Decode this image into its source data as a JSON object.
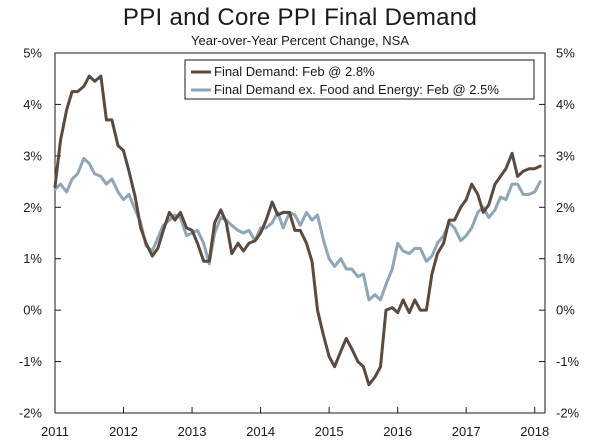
{
  "chart_data": {
    "type": "line",
    "title": "PPI and Core PPI Final Demand",
    "subtitle": "Year-over-Year Percent Change, NSA",
    "xlabel": "",
    "ylabel": "",
    "xlim": [
      2011,
      2018.15
    ],
    "ylim": [
      -2,
      5
    ],
    "y_ticks": [
      "5%",
      "4%",
      "3%",
      "2%",
      "1%",
      "0%",
      "-1%",
      "-2%"
    ],
    "y_tick_values": [
      5,
      4,
      3,
      2,
      1,
      0,
      -1,
      -2
    ],
    "x_ticks": [
      "2011",
      "2012",
      "2013",
      "2014",
      "2015",
      "2016",
      "2017",
      "2018"
    ],
    "x_tick_values": [
      2011,
      2012,
      2013,
      2014,
      2015,
      2016,
      2017,
      2018
    ],
    "legend_position": "top-right",
    "colors": {
      "final_demand": "#5b4a3f",
      "core": "#8ea6b5"
    },
    "series": [
      {
        "name": "Final Demand: Feb @ 2.8%",
        "color": "#5b4a3f",
        "x": [
          2011.0,
          2011.08,
          2011.17,
          2011.25,
          2011.33,
          2011.42,
          2011.5,
          2011.58,
          2011.67,
          2011.75,
          2011.83,
          2011.92,
          2012.0,
          2012.08,
          2012.17,
          2012.25,
          2012.33,
          2012.42,
          2012.5,
          2012.58,
          2012.67,
          2012.75,
          2012.83,
          2012.92,
          2013.0,
          2013.08,
          2013.17,
          2013.25,
          2013.33,
          2013.42,
          2013.5,
          2013.58,
          2013.67,
          2013.75,
          2013.83,
          2013.92,
          2014.0,
          2014.08,
          2014.17,
          2014.25,
          2014.33,
          2014.42,
          2014.5,
          2014.58,
          2014.67,
          2014.75,
          2014.83,
          2014.92,
          2015.0,
          2015.08,
          2015.17,
          2015.25,
          2015.33,
          2015.42,
          2015.5,
          2015.58,
          2015.67,
          2015.75,
          2015.83,
          2015.92,
          2016.0,
          2016.08,
          2016.17,
          2016.25,
          2016.33,
          2016.42,
          2016.5,
          2016.58,
          2016.67,
          2016.75,
          2016.83,
          2016.92,
          2017.0,
          2017.08,
          2017.17,
          2017.25,
          2017.33,
          2017.42,
          2017.5,
          2017.58,
          2017.67,
          2017.75,
          2017.83,
          2017.92,
          2018.0,
          2018.08
        ],
        "values": [
          2.4,
          3.3,
          3.9,
          4.25,
          4.25,
          4.35,
          4.55,
          4.45,
          4.55,
          3.7,
          3.7,
          3.2,
          3.1,
          2.7,
          2.2,
          1.6,
          1.3,
          1.05,
          1.2,
          1.55,
          1.9,
          1.75,
          1.9,
          1.6,
          1.55,
          1.3,
          0.95,
          0.95,
          1.7,
          1.95,
          1.7,
          1.1,
          1.3,
          1.15,
          1.3,
          1.35,
          1.5,
          1.75,
          2.1,
          1.85,
          1.9,
          1.9,
          1.55,
          1.55,
          1.3,
          0.95,
          0.0,
          -0.5,
          -0.9,
          -1.1,
          -0.8,
          -0.55,
          -0.75,
          -1.0,
          -1.1,
          -1.45,
          -1.3,
          -1.1,
          0.0,
          0.05,
          -0.05,
          0.2,
          -0.05,
          0.2,
          0.0,
          0.0,
          0.7,
          1.1,
          1.3,
          1.75,
          1.75,
          2.0,
          2.15,
          2.45,
          2.25,
          1.9,
          2.05,
          2.45,
          2.6,
          2.75,
          3.05,
          2.6,
          2.7,
          2.75,
          2.75,
          2.8
        ]
      },
      {
        "name": "Final Demand ex. Food and Energy: Feb @ 2.5%",
        "color": "#8ea6b5",
        "x": [
          2011.0,
          2011.08,
          2011.17,
          2011.25,
          2011.33,
          2011.42,
          2011.5,
          2011.58,
          2011.67,
          2011.75,
          2011.83,
          2011.92,
          2012.0,
          2012.08,
          2012.17,
          2012.25,
          2012.33,
          2012.42,
          2012.5,
          2012.58,
          2012.67,
          2012.75,
          2012.83,
          2012.92,
          2013.0,
          2013.08,
          2013.17,
          2013.25,
          2013.33,
          2013.42,
          2013.5,
          2013.58,
          2013.67,
          2013.75,
          2013.83,
          2013.92,
          2014.0,
          2014.08,
          2014.17,
          2014.25,
          2014.33,
          2014.42,
          2014.5,
          2014.58,
          2014.67,
          2014.75,
          2014.83,
          2014.92,
          2015.0,
          2015.08,
          2015.17,
          2015.25,
          2015.33,
          2015.42,
          2015.5,
          2015.58,
          2015.67,
          2015.75,
          2015.83,
          2015.92,
          2016.0,
          2016.08,
          2016.17,
          2016.25,
          2016.33,
          2016.42,
          2016.5,
          2016.58,
          2016.67,
          2016.75,
          2016.83,
          2016.92,
          2017.0,
          2017.08,
          2017.17,
          2017.25,
          2017.33,
          2017.42,
          2017.5,
          2017.58,
          2017.67,
          2017.75,
          2017.83,
          2017.92,
          2018.0,
          2018.08
        ],
        "values": [
          2.35,
          2.45,
          2.3,
          2.55,
          2.65,
          2.95,
          2.85,
          2.65,
          2.6,
          2.45,
          2.55,
          2.3,
          2.15,
          2.25,
          1.95,
          1.7,
          1.25,
          1.15,
          1.4,
          1.65,
          1.75,
          1.85,
          1.8,
          1.45,
          1.5,
          1.55,
          1.3,
          0.9,
          1.5,
          1.8,
          1.75,
          1.65,
          1.55,
          1.5,
          1.55,
          1.35,
          1.6,
          1.6,
          1.7,
          1.9,
          1.6,
          1.9,
          1.85,
          1.65,
          1.9,
          1.75,
          1.85,
          1.35,
          1.0,
          0.85,
          1.0,
          0.8,
          0.8,
          0.65,
          0.7,
          0.2,
          0.3,
          0.2,
          0.5,
          0.8,
          1.3,
          1.15,
          1.1,
          1.2,
          1.2,
          0.95,
          1.05,
          1.3,
          1.45,
          1.7,
          1.6,
          1.35,
          1.45,
          1.6,
          1.9,
          2.0,
          1.8,
          1.95,
          2.2,
          2.15,
          2.45,
          2.45,
          2.25,
          2.25,
          2.3,
          2.5
        ]
      }
    ]
  }
}
